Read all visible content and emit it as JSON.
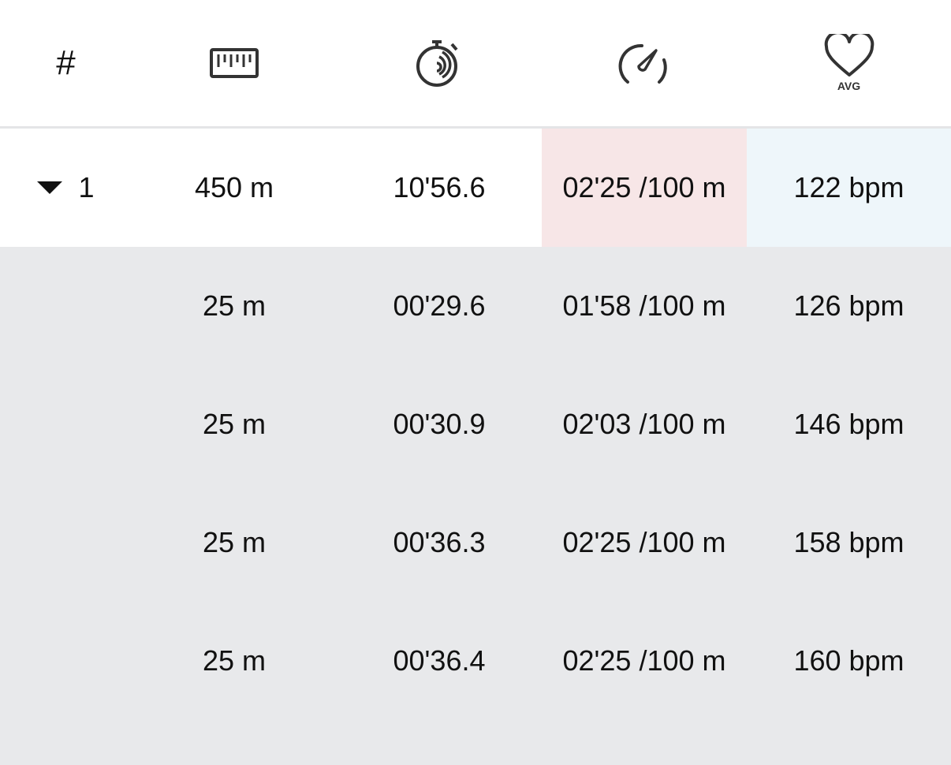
{
  "header": {
    "lap_label": "#",
    "icons": [
      "ruler-icon",
      "stopwatch-icon",
      "speedometer-icon",
      "heart-icon"
    ],
    "hr_sub_label": "AVG"
  },
  "colors": {
    "pace_highlight": "#f7e6e7",
    "hr_highlight": "#eef6fa",
    "sub_row_bg": "#e8e9eb"
  },
  "lap": {
    "number": "1",
    "distance": "450 m",
    "time": "10'56.6",
    "pace": "02'25 /100 m",
    "hr": "122 bpm",
    "expanded": true
  },
  "splits": [
    {
      "distance": "25 m",
      "time": "00'29.6",
      "pace": "01'58 /100 m",
      "hr": "126 bpm"
    },
    {
      "distance": "25 m",
      "time": "00'30.9",
      "pace": "02'03 /100 m",
      "hr": "146 bpm"
    },
    {
      "distance": "25 m",
      "time": "00'36.3",
      "pace": "02'25 /100 m",
      "hr": "158 bpm"
    },
    {
      "distance": "25 m",
      "time": "00'36.4",
      "pace": "02'25 /100 m",
      "hr": "160 bpm"
    }
  ]
}
